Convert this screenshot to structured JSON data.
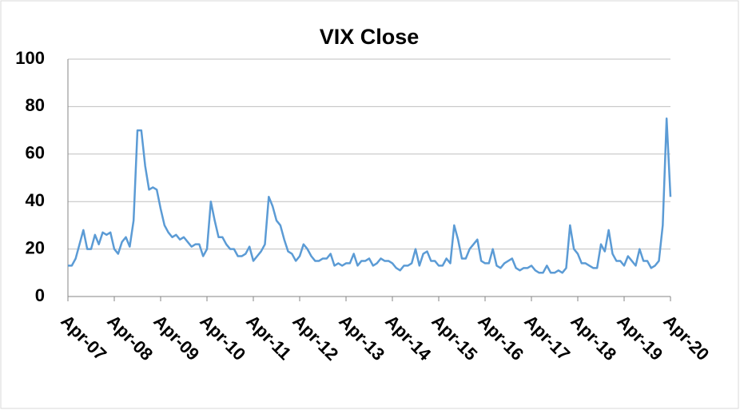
{
  "chart_data": {
    "type": "line",
    "title": "VIX Close",
    "x": [
      "2007-04",
      "2007-05",
      "2007-06",
      "2007-07",
      "2007-08",
      "2007-09",
      "2007-10",
      "2007-11",
      "2007-12",
      "2008-01",
      "2008-02",
      "2008-03",
      "2008-04",
      "2008-05",
      "2008-06",
      "2008-07",
      "2008-08",
      "2008-09",
      "2008-10",
      "2008-11",
      "2008-12",
      "2009-01",
      "2009-02",
      "2009-03",
      "2009-04",
      "2009-05",
      "2009-06",
      "2009-07",
      "2009-08",
      "2009-09",
      "2009-10",
      "2009-11",
      "2009-12",
      "2010-01",
      "2010-02",
      "2010-03",
      "2010-04",
      "2010-05",
      "2010-06",
      "2010-07",
      "2010-08",
      "2010-09",
      "2010-10",
      "2010-11",
      "2010-12",
      "2011-01",
      "2011-02",
      "2011-03",
      "2011-04",
      "2011-05",
      "2011-06",
      "2011-07",
      "2011-08",
      "2011-09",
      "2011-10",
      "2011-11",
      "2011-12",
      "2012-01",
      "2012-02",
      "2012-03",
      "2012-04",
      "2012-05",
      "2012-06",
      "2012-07",
      "2012-08",
      "2012-09",
      "2012-10",
      "2012-11",
      "2012-12",
      "2013-01",
      "2013-02",
      "2013-03",
      "2013-04",
      "2013-05",
      "2013-06",
      "2013-07",
      "2013-08",
      "2013-09",
      "2013-10",
      "2013-11",
      "2013-12",
      "2014-01",
      "2014-02",
      "2014-03",
      "2014-04",
      "2014-05",
      "2014-06",
      "2014-07",
      "2014-08",
      "2014-09",
      "2014-10",
      "2014-11",
      "2014-12",
      "2015-01",
      "2015-02",
      "2015-03",
      "2015-04",
      "2015-05",
      "2015-06",
      "2015-07",
      "2015-08",
      "2015-09",
      "2015-10",
      "2015-11",
      "2015-12",
      "2016-01",
      "2016-02",
      "2016-03",
      "2016-04",
      "2016-05",
      "2016-06",
      "2016-07",
      "2016-08",
      "2016-09",
      "2016-10",
      "2016-11",
      "2016-12",
      "2017-01",
      "2017-02",
      "2017-03",
      "2017-04",
      "2017-05",
      "2017-06",
      "2017-07",
      "2017-08",
      "2017-09",
      "2017-10",
      "2017-11",
      "2017-12",
      "2018-01",
      "2018-02",
      "2018-03",
      "2018-04",
      "2018-05",
      "2018-06",
      "2018-07",
      "2018-08",
      "2018-09",
      "2018-10",
      "2018-11",
      "2018-12",
      "2019-01",
      "2019-02",
      "2019-03",
      "2019-04",
      "2019-05",
      "2019-06",
      "2019-07",
      "2019-08",
      "2019-09",
      "2019-10",
      "2019-11",
      "2019-12",
      "2020-01",
      "2020-02",
      "2020-03",
      "2020-04"
    ],
    "series": [
      {
        "name": "VIX Close",
        "color": "#5b9bd5",
        "values": [
          13,
          13,
          16,
          22,
          28,
          20,
          20,
          26,
          22,
          27,
          26,
          27,
          20,
          18,
          23,
          25,
          21,
          32,
          70,
          70,
          55,
          45,
          46,
          45,
          37,
          30,
          27,
          25,
          26,
          24,
          25,
          23,
          21,
          22,
          22,
          17,
          20,
          40,
          32,
          25,
          25,
          22,
          20,
          20,
          17,
          17,
          18,
          21,
          15,
          17,
          19,
          22,
          42,
          38,
          32,
          30,
          24,
          19,
          18,
          15,
          17,
          22,
          20,
          17,
          15,
          15,
          16,
          16,
          18,
          13,
          14,
          13,
          14,
          14,
          18,
          13,
          15,
          15,
          16,
          13,
          14,
          16,
          15,
          15,
          14,
          12,
          11,
          13,
          13,
          14,
          20,
          13,
          18,
          19,
          15,
          15,
          13,
          13,
          16,
          14,
          30,
          24,
          16,
          16,
          20,
          22,
          24,
          15,
          14,
          14,
          20,
          13,
          12,
          14,
          15,
          16,
          12,
          11,
          12,
          12,
          13,
          11,
          10,
          10,
          13,
          10,
          10,
          11,
          10,
          12,
          30,
          20,
          18,
          14,
          14,
          13,
          12,
          12,
          22,
          19,
          28,
          18,
          15,
          15,
          13,
          17,
          15,
          13,
          20,
          15,
          15,
          12,
          13,
          15,
          30,
          75,
          42
        ]
      }
    ],
    "xlim": [
      "2007-04",
      "2020-04"
    ],
    "xticks": [
      {
        "value": "2007-04",
        "label": "Apr-07"
      },
      {
        "value": "2008-04",
        "label": "Apr-08"
      },
      {
        "value": "2009-04",
        "label": "Apr-09"
      },
      {
        "value": "2010-04",
        "label": "Apr-10"
      },
      {
        "value": "2011-04",
        "label": "Apr-11"
      },
      {
        "value": "2012-04",
        "label": "Apr-12"
      },
      {
        "value": "2013-04",
        "label": "Apr-13"
      },
      {
        "value": "2014-04",
        "label": "Apr-14"
      },
      {
        "value": "2015-04",
        "label": "Apr-15"
      },
      {
        "value": "2016-04",
        "label": "Apr-16"
      },
      {
        "value": "2017-04",
        "label": "Apr-17"
      },
      {
        "value": "2018-04",
        "label": "Apr-18"
      },
      {
        "value": "2019-04",
        "label": "Apr-19"
      },
      {
        "value": "2020-04",
        "label": "Apr-20"
      }
    ],
    "ylim": [
      0,
      100
    ],
    "yticks": [
      0,
      20,
      40,
      60,
      80,
      100
    ],
    "grid": true
  }
}
